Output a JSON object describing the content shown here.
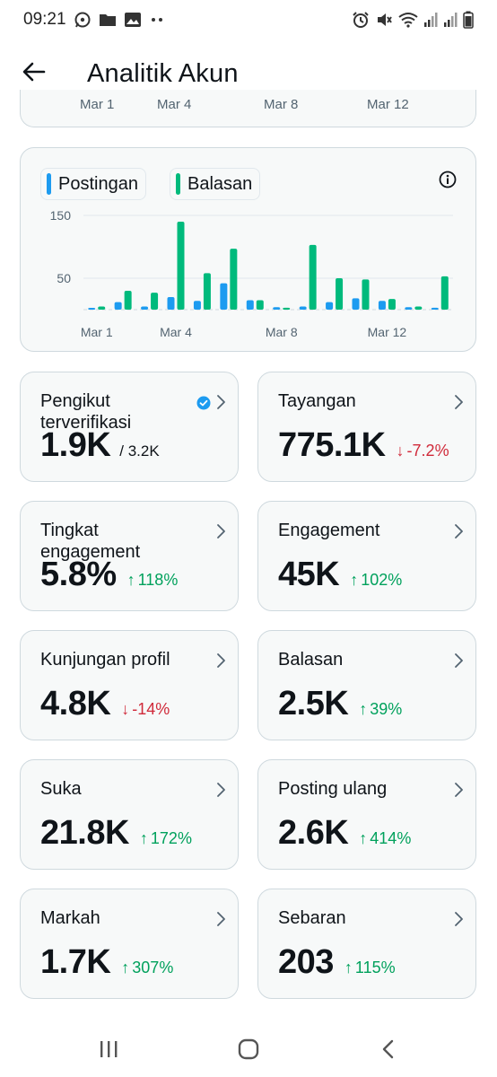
{
  "status_bar": {
    "time": "09:21",
    "left_icons": [
      "whatsapp-icon",
      "folder-icon",
      "image-icon",
      "more-dots-icon"
    ],
    "right_icons": [
      "alarm-icon",
      "mute-icon",
      "wifi-icon",
      "signal-icon",
      "signal-icon",
      "battery-icon"
    ]
  },
  "header": {
    "title": "Analitik Akun",
    "back_icon": "arrow-left-icon"
  },
  "previous_chart": {
    "x_labels": [
      "Mar 1",
      "Mar 4",
      "Mar 8",
      "Mar 12"
    ]
  },
  "chart": {
    "legend": [
      {
        "label": "Postingan",
        "color": "#1d9bf0"
      },
      {
        "label": "Balasan",
        "color": "#00ba7c"
      }
    ],
    "info_icon": "info-icon"
  },
  "chart_data": {
    "type": "bar",
    "categories": [
      "Mar 1",
      "Mar 2",
      "Mar 3",
      "Mar 4",
      "Mar 5",
      "Mar 6",
      "Mar 7",
      "Mar 8",
      "Mar 9",
      "Mar 10",
      "Mar 11",
      "Mar 12",
      "Mar 13",
      "Mar 14"
    ],
    "x_tick_labels": [
      "Mar 1",
      "Mar 4",
      "Mar 8",
      "Mar 12"
    ],
    "y_tick_labels": [
      "150",
      "50"
    ],
    "y_ticks": [
      150,
      50
    ],
    "ylim": [
      0,
      160
    ],
    "grid": true,
    "legend_position": "top-left",
    "series": [
      {
        "name": "Postingan",
        "color": "#1d9bf0",
        "values": [
          2,
          12,
          5,
          20,
          14,
          42,
          15,
          4,
          5,
          12,
          18,
          14,
          4,
          3
        ]
      },
      {
        "name": "Balasan",
        "color": "#00ba7c",
        "values": [
          5,
          30,
          27,
          140,
          58,
          97,
          15,
          3,
          103,
          50,
          48,
          17,
          5,
          53
        ]
      }
    ]
  },
  "stats": [
    {
      "label": "Pengikut terverifikasi",
      "value": "1.9K",
      "sub": "/ 3.2K",
      "change": "",
      "direction": "none",
      "verified": true
    },
    {
      "label": "Tayangan",
      "value": "775.1K",
      "sub": "",
      "change": "-7.2%",
      "direction": "down",
      "verified": false
    },
    {
      "label": "Tingkat engagement",
      "value": "5.8%",
      "sub": "",
      "change": "118%",
      "direction": "up",
      "verified": false
    },
    {
      "label": "Engagement",
      "value": "45K",
      "sub": "",
      "change": "102%",
      "direction": "up",
      "verified": false
    },
    {
      "label": "Kunjungan profil",
      "value": "4.8K",
      "sub": "",
      "change": "-14%",
      "direction": "down",
      "verified": false
    },
    {
      "label": "Balasan",
      "value": "2.5K",
      "sub": "",
      "change": "39%",
      "direction": "up",
      "verified": false
    },
    {
      "label": "Suka",
      "value": "21.8K",
      "sub": "",
      "change": "172%",
      "direction": "up",
      "verified": false
    },
    {
      "label": "Posting ulang",
      "value": "2.6K",
      "sub": "",
      "change": "414%",
      "direction": "up",
      "verified": false
    },
    {
      "label": "Markah",
      "value": "1.7K",
      "sub": "",
      "change": "307%",
      "direction": "up",
      "verified": false
    },
    {
      "label": "Sebaran",
      "value": "203",
      "sub": "",
      "change": "115%",
      "direction": "up",
      "verified": false
    }
  ],
  "colors": {
    "up": "#00a15c",
    "down": "#d02a3a",
    "accent": "#1d9bf0"
  },
  "nav_bar": {
    "icons": [
      "recent-apps-icon",
      "home-icon",
      "back-icon"
    ]
  }
}
